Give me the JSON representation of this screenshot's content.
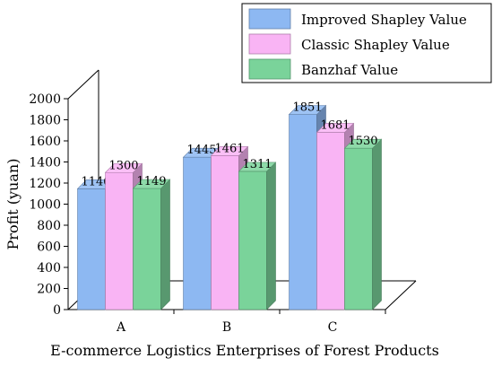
{
  "chart_data": {
    "type": "bar",
    "title": "",
    "xlabel": "E-commerce Logistics Enterprises of Forest Products",
    "ylabel": "Profit (yuan)",
    "ylim": [
      0,
      2000
    ],
    "yticks": [
      "0",
      "200",
      "400",
      "600",
      "800",
      "1000",
      "1200",
      "1400",
      "1600",
      "1800",
      "2000"
    ],
    "categories": [
      "A",
      "B",
      "C"
    ],
    "series": [
      {
        "name": "Improved Shapley Value",
        "values": [
          1146,
          1445,
          1851
        ],
        "color": "#8db8f2"
      },
      {
        "name": "Classic Shapley Value",
        "values": [
          1300,
          1461,
          1681
        ],
        "color": "#f9b4f4"
      },
      {
        "name": "Banzhaf Value",
        "values": [
          1149,
          1311,
          1530
        ],
        "color": "#7ad39a"
      }
    ],
    "legend_position": "top-right",
    "grid": false,
    "style": "3d-bar"
  }
}
